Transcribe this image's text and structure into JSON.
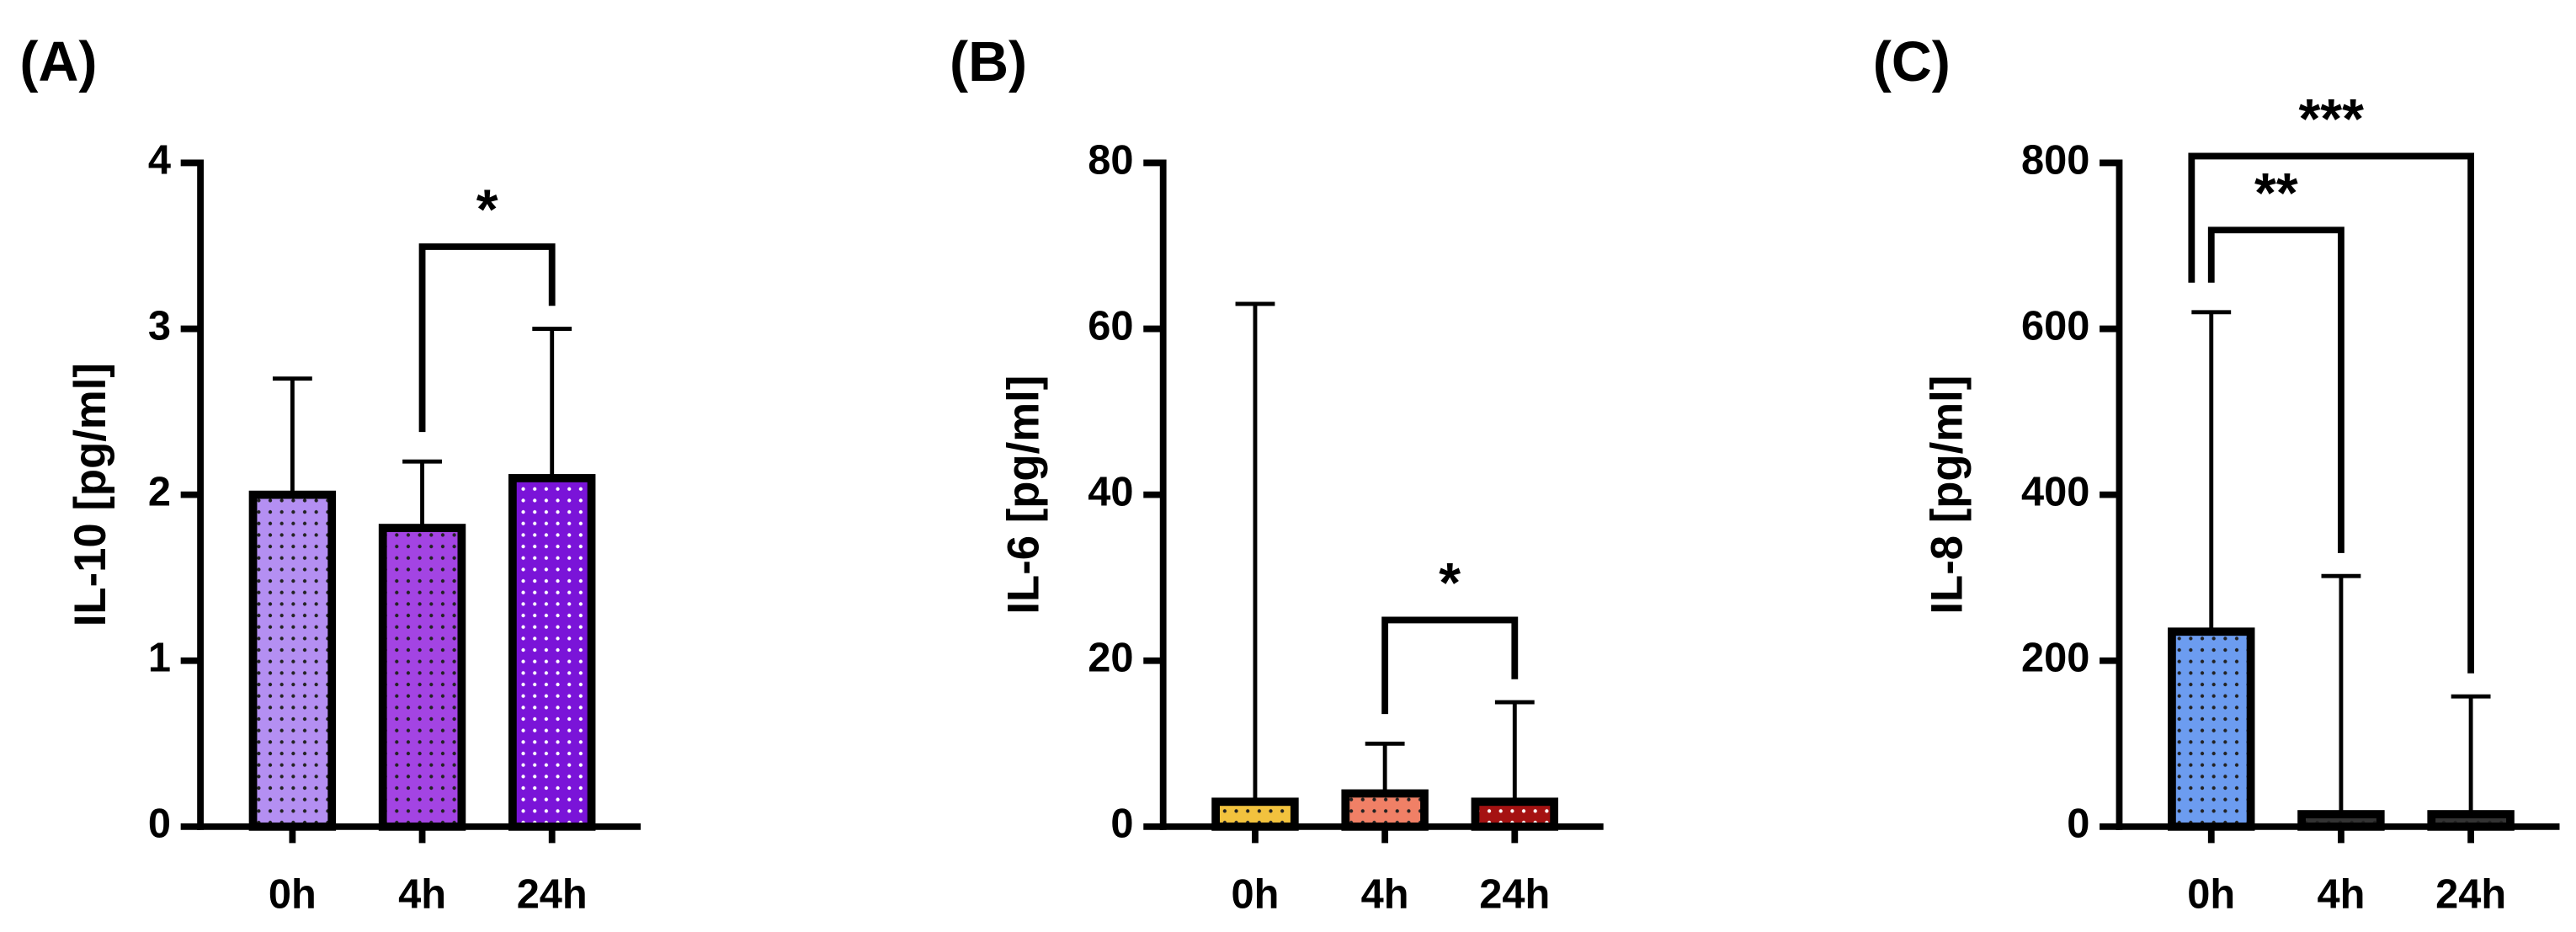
{
  "chart_data": [
    {
      "type": "bar",
      "panel_label": "(A)",
      "ylabel": "IL-10 [pg/ml]",
      "categories": [
        "0h",
        "4h",
        "24h"
      ],
      "values": [
        2.0,
        1.8,
        2.1
      ],
      "errors": [
        0.7,
        0.4,
        0.9
      ],
      "colors": [
        "#b48ff2",
        "#a344e3",
        "#7a14d8"
      ],
      "dot_color": "#222222",
      "ylim": [
        0,
        4
      ],
      "yticks": [
        0,
        1,
        2,
        3,
        4
      ],
      "annotations": [
        {
          "between": [
            1,
            2
          ],
          "label": "*"
        }
      ]
    },
    {
      "type": "bar",
      "panel_label": "(B)",
      "ylabel": "IL-6 [pg/ml]",
      "categories": [
        "0h",
        "4h",
        "24h"
      ],
      "values": [
        3,
        4,
        3
      ],
      "errors": [
        60,
        6,
        12
      ],
      "colors": [
        "#f2c23e",
        "#f08066",
        "#a51212"
      ],
      "dot_color": "#222222",
      "ylim": [
        0,
        80
      ],
      "yticks": [
        0,
        20,
        40,
        60,
        80
      ],
      "annotations": [
        {
          "between": [
            1,
            2
          ],
          "label": "*"
        }
      ]
    },
    {
      "type": "bar",
      "panel_label": "(C)",
      "ylabel": "IL-8 [pg/ml]",
      "categories": [
        "0h",
        "4h",
        "24h"
      ],
      "values": [
        235,
        15,
        15
      ],
      "errors": [
        385,
        287,
        142
      ],
      "colors": [
        "#6c9cf0",
        "#333333",
        "#333333"
      ],
      "dot_color": "#222222",
      "ylim": [
        0,
        800
      ],
      "yticks": [
        0,
        200,
        400,
        600,
        800
      ],
      "annotations": [
        {
          "between": [
            0,
            1
          ],
          "label": "**"
        },
        {
          "between": [
            0,
            2
          ],
          "label": "***"
        }
      ]
    }
  ]
}
